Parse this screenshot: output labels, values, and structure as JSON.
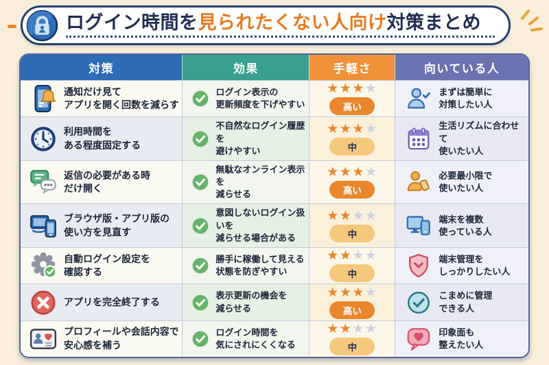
{
  "page": {
    "background": "#f8eeda"
  },
  "title": {
    "prefix": "ログイン時間を",
    "highlight": "見られたくない人向け",
    "suffix": "対策まとめ",
    "colors": {
      "base": "#1f2d52",
      "highlight": "#e87a1f"
    }
  },
  "table": {
    "headers": [
      {
        "label": "対策",
        "color": "#2e6cb5"
      },
      {
        "label": "効果",
        "color": "#38a08c"
      },
      {
        "label": "手軽さ",
        "color": "#ef9138"
      },
      {
        "label": "向いている人",
        "color": "#6b72b0"
      }
    ],
    "ease_max_stars": 4,
    "star_colors": {
      "on": "#e8872c",
      "off": "#ccd1db"
    },
    "badge_colors": {
      "high_bg": "#e8872c",
      "mid_bg": "#f6c87d"
    },
    "rows": [
      {
        "measure": {
          "icon": "phone-bell",
          "lines": [
            "通知だけ見て",
            "アプリを開く回数を減らす"
          ]
        },
        "effect": {
          "icon": "check-circle-green",
          "lines": [
            "ログイン表示の",
            "更新頻度を下げやすい"
          ]
        },
        "ease": {
          "stars": 3,
          "badge": "高い",
          "level": "high"
        },
        "suited": {
          "icon": "person-check",
          "lines": [
            "まずは簡単に",
            "対策したい人"
          ]
        }
      },
      {
        "measure": {
          "icon": "clock",
          "lines": [
            "利用時間を",
            "ある程度固定する"
          ]
        },
        "effect": {
          "icon": "check-circle-green",
          "lines": [
            "不自然なログイン履歴を",
            "避けやすい"
          ]
        },
        "ease": {
          "stars": 3,
          "badge": "中",
          "level": "mid"
        },
        "suited": {
          "icon": "calendar",
          "lines": [
            "生活リズムに合わせて",
            "使いたい人"
          ]
        }
      },
      {
        "measure": {
          "icon": "chat-bubbles",
          "lines": [
            "返信の必要がある時",
            "だけ開く"
          ]
        },
        "effect": {
          "icon": "check-circle-green",
          "lines": [
            "無駄なオンライン表示を",
            "減らせる"
          ]
        },
        "ease": {
          "stars": 3,
          "badge": "高い",
          "level": "high"
        },
        "suited": {
          "icon": "person-phone",
          "lines": [
            "必要最小限で",
            "使いたい人"
          ]
        }
      },
      {
        "measure": {
          "icon": "laptop-phone",
          "lines": [
            "ブラウザ版・アプリ版の",
            "使い方を見直す"
          ]
        },
        "effect": {
          "icon": "check-circle-green",
          "lines": [
            "意図しないログイン扱いを",
            "減らせる場合がある"
          ]
        },
        "ease": {
          "stars": 2,
          "badge": "中",
          "level": "mid"
        },
        "suited": {
          "icon": "monitor-phone",
          "lines": [
            "端末を複数",
            "使っている人"
          ]
        }
      },
      {
        "measure": {
          "icon": "gear-check",
          "lines": [
            "自動ログイン設定を",
            "確認する"
          ]
        },
        "effect": {
          "icon": "check-circle-green",
          "lines": [
            "勝手に稼働して見える",
            "状態を防ぎやすい"
          ]
        },
        "ease": {
          "stars": 2,
          "badge": "中",
          "level": "mid"
        },
        "suited": {
          "icon": "shield-check",
          "lines": [
            "端末管理を",
            "しっかりしたい人"
          ]
        }
      },
      {
        "measure": {
          "icon": "x-circle",
          "lines": [
            "アプリを完全終了する"
          ]
        },
        "effect": {
          "icon": "check-circle-green",
          "lines": [
            "表示更新の機会を",
            "減らせる"
          ]
        },
        "ease": {
          "stars": 3,
          "badge": "高い",
          "level": "high"
        },
        "suited": {
          "icon": "check-circle-teal",
          "lines": [
            "こまめに管理",
            "できる人"
          ]
        }
      },
      {
        "measure": {
          "icon": "id-card-heart",
          "lines": [
            "プロフィールや会話内容で",
            "安心感を補う"
          ]
        },
        "effect": {
          "icon": "check-circle-green",
          "lines": [
            "ログイン時間を",
            "気にされにくくなる"
          ]
        },
        "ease": {
          "stars": 2,
          "badge": "中",
          "level": "mid"
        },
        "suited": {
          "icon": "speech-heart",
          "lines": [
            "印象面も",
            "整えたい人"
          ]
        }
      }
    ]
  }
}
